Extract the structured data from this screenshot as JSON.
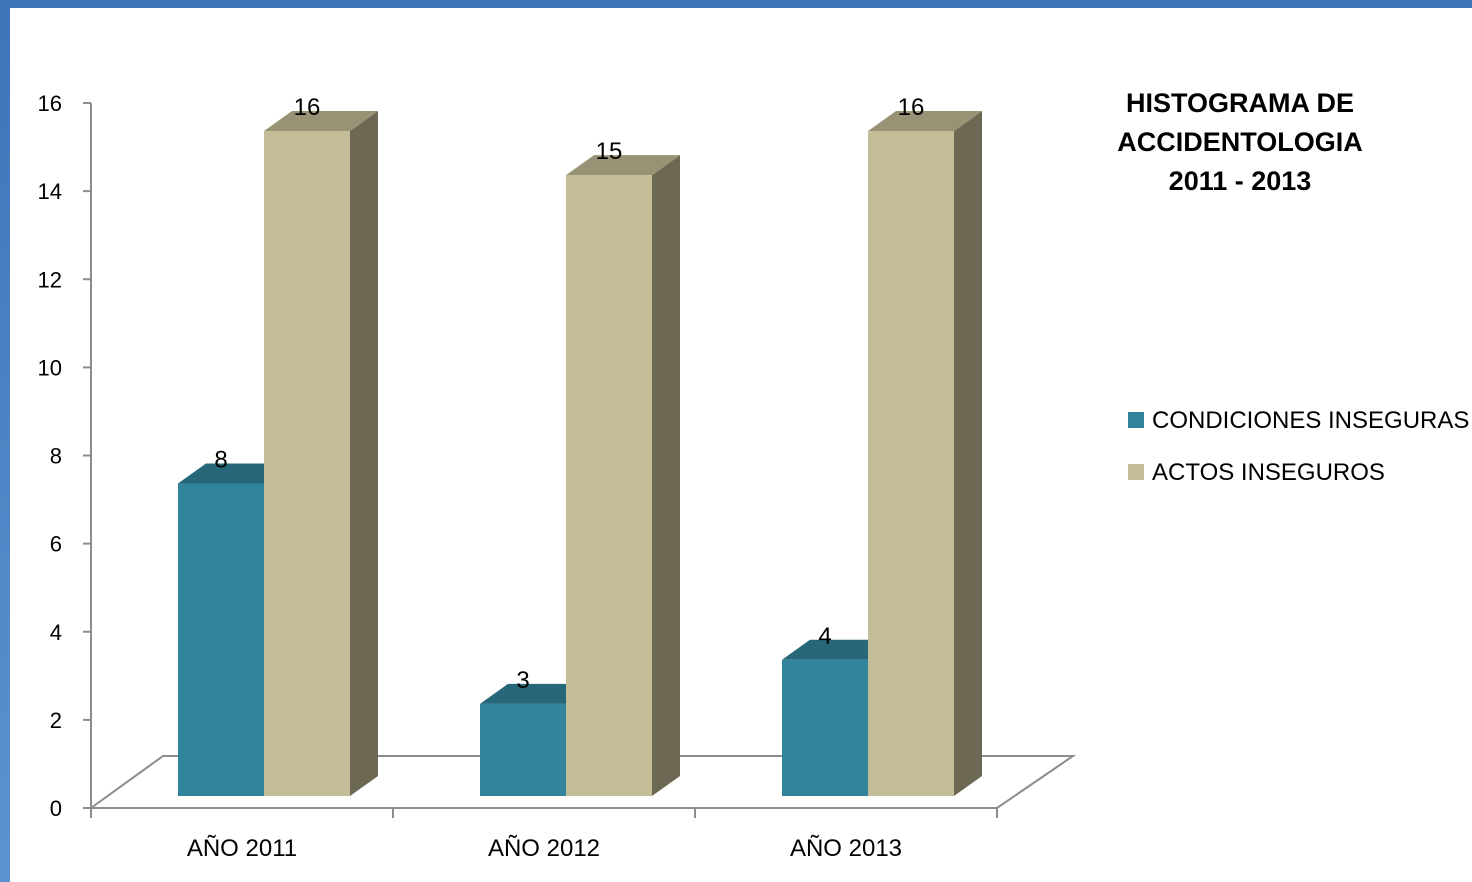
{
  "chart_data": {
    "type": "bar",
    "title_lines": [
      "HISTOGRAMA DE",
      "ACCIDENTOLOGIA",
      "2011 - 2013"
    ],
    "categories": [
      "AÑO 2011",
      "AÑO 2012",
      "AÑO 2013"
    ],
    "series": [
      {
        "name": "CONDICIONES INSEGURAS",
        "values": [
          8,
          3,
          4
        ],
        "color": "#31849b"
      },
      {
        "name": "ACTOS INSEGUROS",
        "values": [
          16,
          15,
          16
        ],
        "color": "#c4bd97"
      }
    ],
    "ylim": [
      0,
      16
    ],
    "yticks": [
      "0",
      "2",
      "4",
      "6",
      "8",
      "10",
      "12",
      "14",
      "16"
    ],
    "legend_position": "right",
    "grid": false,
    "bar_style": "3d"
  }
}
